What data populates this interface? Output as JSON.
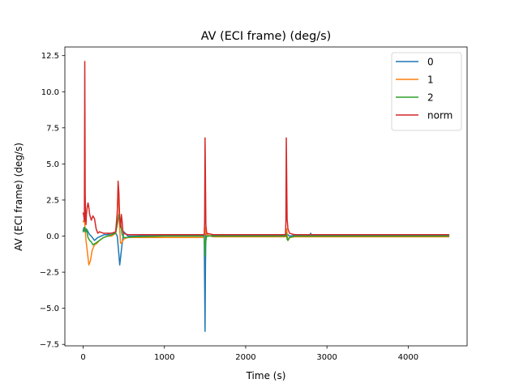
{
  "chart_data": {
    "type": "line",
    "title": "AV (ECI frame) (deg/s)",
    "xlabel": "Time (s)",
    "ylabel": "AV (ECI frame) (deg/s)",
    "xlim": [
      -225,
      4725
    ],
    "ylim": [
      -7.6,
      13.1
    ],
    "x_ticks": [
      {
        "value": 0,
        "label": "0"
      },
      {
        "value": 1000,
        "label": "1000"
      },
      {
        "value": 2000,
        "label": "2000"
      },
      {
        "value": 3000,
        "label": "3000"
      },
      {
        "value": 4000,
        "label": "4000"
      }
    ],
    "y_ticks": [
      {
        "value": -7.5,
        "label": "−7.5"
      },
      {
        "value": -5.0,
        "label": "−5.0"
      },
      {
        "value": -2.5,
        "label": "−2.5"
      },
      {
        "value": 0.0,
        "label": "0.0"
      },
      {
        "value": 2.5,
        "label": "2.5"
      },
      {
        "value": 5.0,
        "label": "5.0"
      },
      {
        "value": 7.5,
        "label": "7.5"
      },
      {
        "value": 10.0,
        "label": "10.0"
      },
      {
        "value": 12.5,
        "label": "12.5"
      }
    ],
    "grid": false,
    "legend_position": "upper right",
    "series": [
      {
        "name": "0",
        "color": "#1f77b4",
        "x": [
          0,
          10,
          20,
          30,
          40,
          60,
          80,
          100,
          140,
          180,
          220,
          260,
          300,
          350,
          400,
          420,
          440,
          450,
          460,
          480,
          500,
          550,
          600,
          1000,
          1490,
          1500,
          1505,
          1510,
          1520,
          1540,
          1600,
          2000,
          2490,
          2500,
          2505,
          2510,
          2520,
          2540,
          2600,
          2790,
          2800,
          2810,
          3000,
          4500
        ],
        "y": [
          0.4,
          0.6,
          0.3,
          0.5,
          0.5,
          0.3,
          0.1,
          0.0,
          -0.3,
          -0.1,
          0.0,
          0.1,
          0.1,
          0.2,
          0.2,
          0.0,
          -1.3,
          -2.0,
          -1.5,
          -0.5,
          0.3,
          0.0,
          0.0,
          0.05,
          0.05,
          -6.6,
          -2.0,
          0.1,
          0.2,
          0.0,
          0.05,
          0.05,
          0.05,
          0.3,
          0.2,
          0.1,
          0.1,
          0.0,
          0.05,
          0.05,
          0.2,
          0.05,
          0.05,
          0.05
        ]
      },
      {
        "name": "1",
        "color": "#ff7f0e",
        "x": [
          0,
          15,
          25,
          35,
          50,
          70,
          90,
          110,
          140,
          170,
          200,
          250,
          300,
          350,
          400,
          420,
          430,
          440,
          450,
          460,
          480,
          500,
          550,
          600,
          1000,
          1490,
          1500,
          1505,
          1520,
          1600,
          2490,
          2500,
          2505,
          2510,
          2520,
          2540,
          2600,
          3000,
          4500
        ],
        "y": [
          1.0,
          1.1,
          0.5,
          -0.3,
          -1.0,
          -2.0,
          -1.7,
          -1.0,
          -0.6,
          -0.5,
          -0.3,
          -0.1,
          0.0,
          0.0,
          0.2,
          1.8,
          3.2,
          2.0,
          0.5,
          -0.5,
          -0.4,
          -0.2,
          -0.1,
          -0.1,
          -0.1,
          -0.1,
          0.2,
          0.6,
          0.1,
          -0.05,
          -0.05,
          0.3,
          0.5,
          0.2,
          -0.3,
          -0.1,
          -0.05,
          -0.05,
          -0.05
        ]
      },
      {
        "name": "2",
        "color": "#2ca02c",
        "x": [
          0,
          20,
          30,
          40,
          60,
          80,
          100,
          120,
          150,
          200,
          250,
          300,
          350,
          400,
          420,
          440,
          450,
          460,
          470,
          480,
          500,
          550,
          600,
          1000,
          1490,
          1500,
          1505,
          1520,
          1600,
          2490,
          2500,
          2505,
          2510,
          2520,
          2540,
          2600,
          3000,
          4500
        ],
        "y": [
          0.3,
          0.6,
          0.3,
          0.5,
          -0.1,
          -0.3,
          -0.4,
          -0.6,
          -0.5,
          -0.3,
          -0.1,
          0.0,
          0.1,
          0.2,
          0.8,
          1.5,
          1.3,
          0.9,
          0.5,
          0.1,
          -0.1,
          -0.1,
          -0.05,
          0.0,
          0.0,
          -1.4,
          -0.5,
          0.0,
          0.0,
          0.0,
          0.2,
          0.0,
          -0.2,
          -0.3,
          -0.1,
          0.0,
          0.0,
          0.0
        ]
      },
      {
        "name": "norm",
        "color": "#d62728",
        "x": [
          0,
          5,
          10,
          15,
          20,
          25,
          30,
          35,
          40,
          50,
          60,
          70,
          80,
          100,
          120,
          140,
          160,
          180,
          200,
          250,
          300,
          350,
          400,
          420,
          430,
          440,
          450,
          460,
          470,
          480,
          490,
          500,
          520,
          550,
          600,
          1000,
          1490,
          1495,
          1500,
          1505,
          1510,
          1520,
          1600,
          2490,
          2495,
          2500,
          2505,
          2510,
          2520,
          2540,
          2600,
          3000,
          4500
        ],
        "y": [
          1.6,
          1.5,
          1.3,
          1.0,
          12.1,
          3.0,
          1.2,
          0.8,
          1.5,
          2.0,
          2.3,
          2.0,
          1.5,
          1.1,
          1.4,
          1.2,
          0.5,
          0.2,
          0.3,
          0.2,
          0.2,
          0.2,
          0.3,
          1.5,
          3.8,
          3.0,
          1.0,
          0.6,
          1.5,
          1.0,
          0.3,
          0.2,
          0.15,
          0.1,
          0.1,
          0.1,
          0.1,
          1.0,
          6.8,
          4.0,
          0.8,
          0.2,
          0.1,
          0.1,
          1.0,
          6.8,
          4.0,
          1.2,
          0.5,
          0.2,
          0.1,
          0.1,
          0.1
        ]
      }
    ]
  }
}
